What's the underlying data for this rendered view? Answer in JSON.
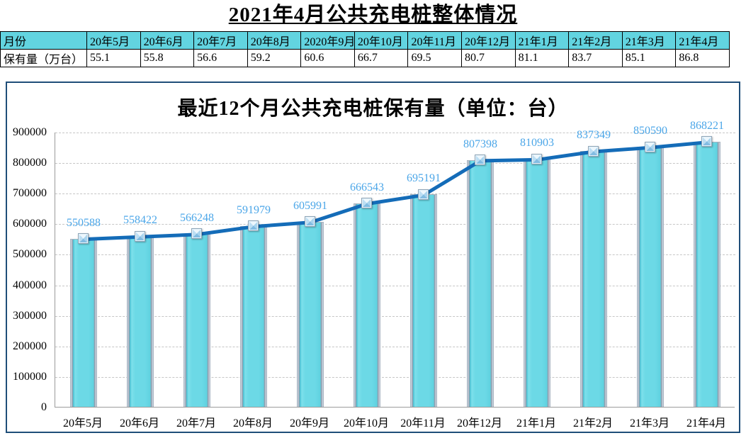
{
  "page_title": "2021年4月公共充电桩整体情况",
  "table": {
    "row1_label": "月份",
    "row2_label": "保有量（万台）",
    "months": [
      "20年5月",
      "20年6月",
      "20年7月",
      "20年8月",
      "2020年9月",
      "20年10月",
      "20年11月",
      "20年12月",
      "21年1月",
      "21年2月",
      "21年3月",
      "21年4月"
    ],
    "values": [
      "55.1",
      "55.8",
      "56.6",
      "59.2",
      "60.6",
      "66.7",
      "69.5",
      "80.7",
      "81.1",
      "83.7",
      "85.1",
      "86.8"
    ]
  },
  "chart_data": {
    "type": "bar",
    "subtype": "bar-with-line-overlay",
    "title": "最近12个月公共充电桩保有量（单位：台）",
    "categories": [
      "20年5月",
      "20年6月",
      "20年7月",
      "20年8月",
      "20年9月",
      "20年10月",
      "20年11月",
      "20年12月",
      "21年1月",
      "21年2月",
      "21年3月",
      "21年4月"
    ],
    "values": [
      550588,
      558422,
      566248,
      591979,
      605991,
      666543,
      695191,
      807398,
      810903,
      837349,
      850590,
      868221
    ],
    "data_labels": [
      "550588",
      "558422",
      "566248",
      "591979",
      "605991",
      "666543",
      "695191",
      "807398",
      "810903",
      "837349",
      "850590",
      "868221"
    ],
    "xlabel": "",
    "ylabel": "",
    "ylim": [
      0,
      900000
    ],
    "yticks": [
      0,
      100000,
      200000,
      300000,
      400000,
      500000,
      600000,
      700000,
      800000,
      900000
    ],
    "grid": "horizontal-dashed",
    "legend": "none"
  },
  "colors": {
    "bar_fill": "#6CD9E6",
    "bar_edge": "#98A3B3",
    "line": "#146CB8",
    "data_label": "#4BA6E8",
    "table_header_bg": "#62D4E0",
    "panel_border": "#1F4E79",
    "grid": "#C6C6C6",
    "axis": "#9B9B9B"
  }
}
